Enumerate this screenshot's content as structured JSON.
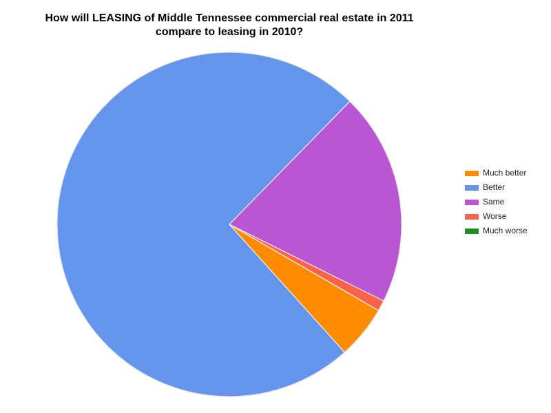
{
  "chart_data": {
    "type": "pie",
    "title": "How will LEASING of Middle Tennessee commercial real estate in 2011 compare to leasing in 2010?",
    "categories": [
      "Much better",
      "Better",
      "Same",
      "Worse",
      "Much worse"
    ],
    "values": [
      5,
      74,
      20,
      1,
      0
    ],
    "colors": [
      "#ff8c00",
      "#6495ed",
      "#ba55d3",
      "#ff6347",
      "#228b22"
    ],
    "legend": "right"
  }
}
